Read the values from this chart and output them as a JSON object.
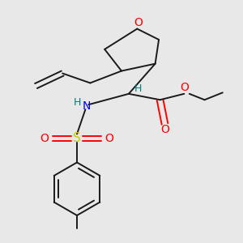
{
  "background_color": "#e8e8e8",
  "bond_color": "#1a1a1a",
  "O_color": "#ff0000",
  "N_color": "#0000ff",
  "S_color": "#cccc00",
  "H_color": "#008080",
  "figsize": [
    3.0,
    3.0
  ],
  "dpi": 100,
  "xlim": [
    0,
    1
  ],
  "ylim": [
    0,
    1
  ]
}
